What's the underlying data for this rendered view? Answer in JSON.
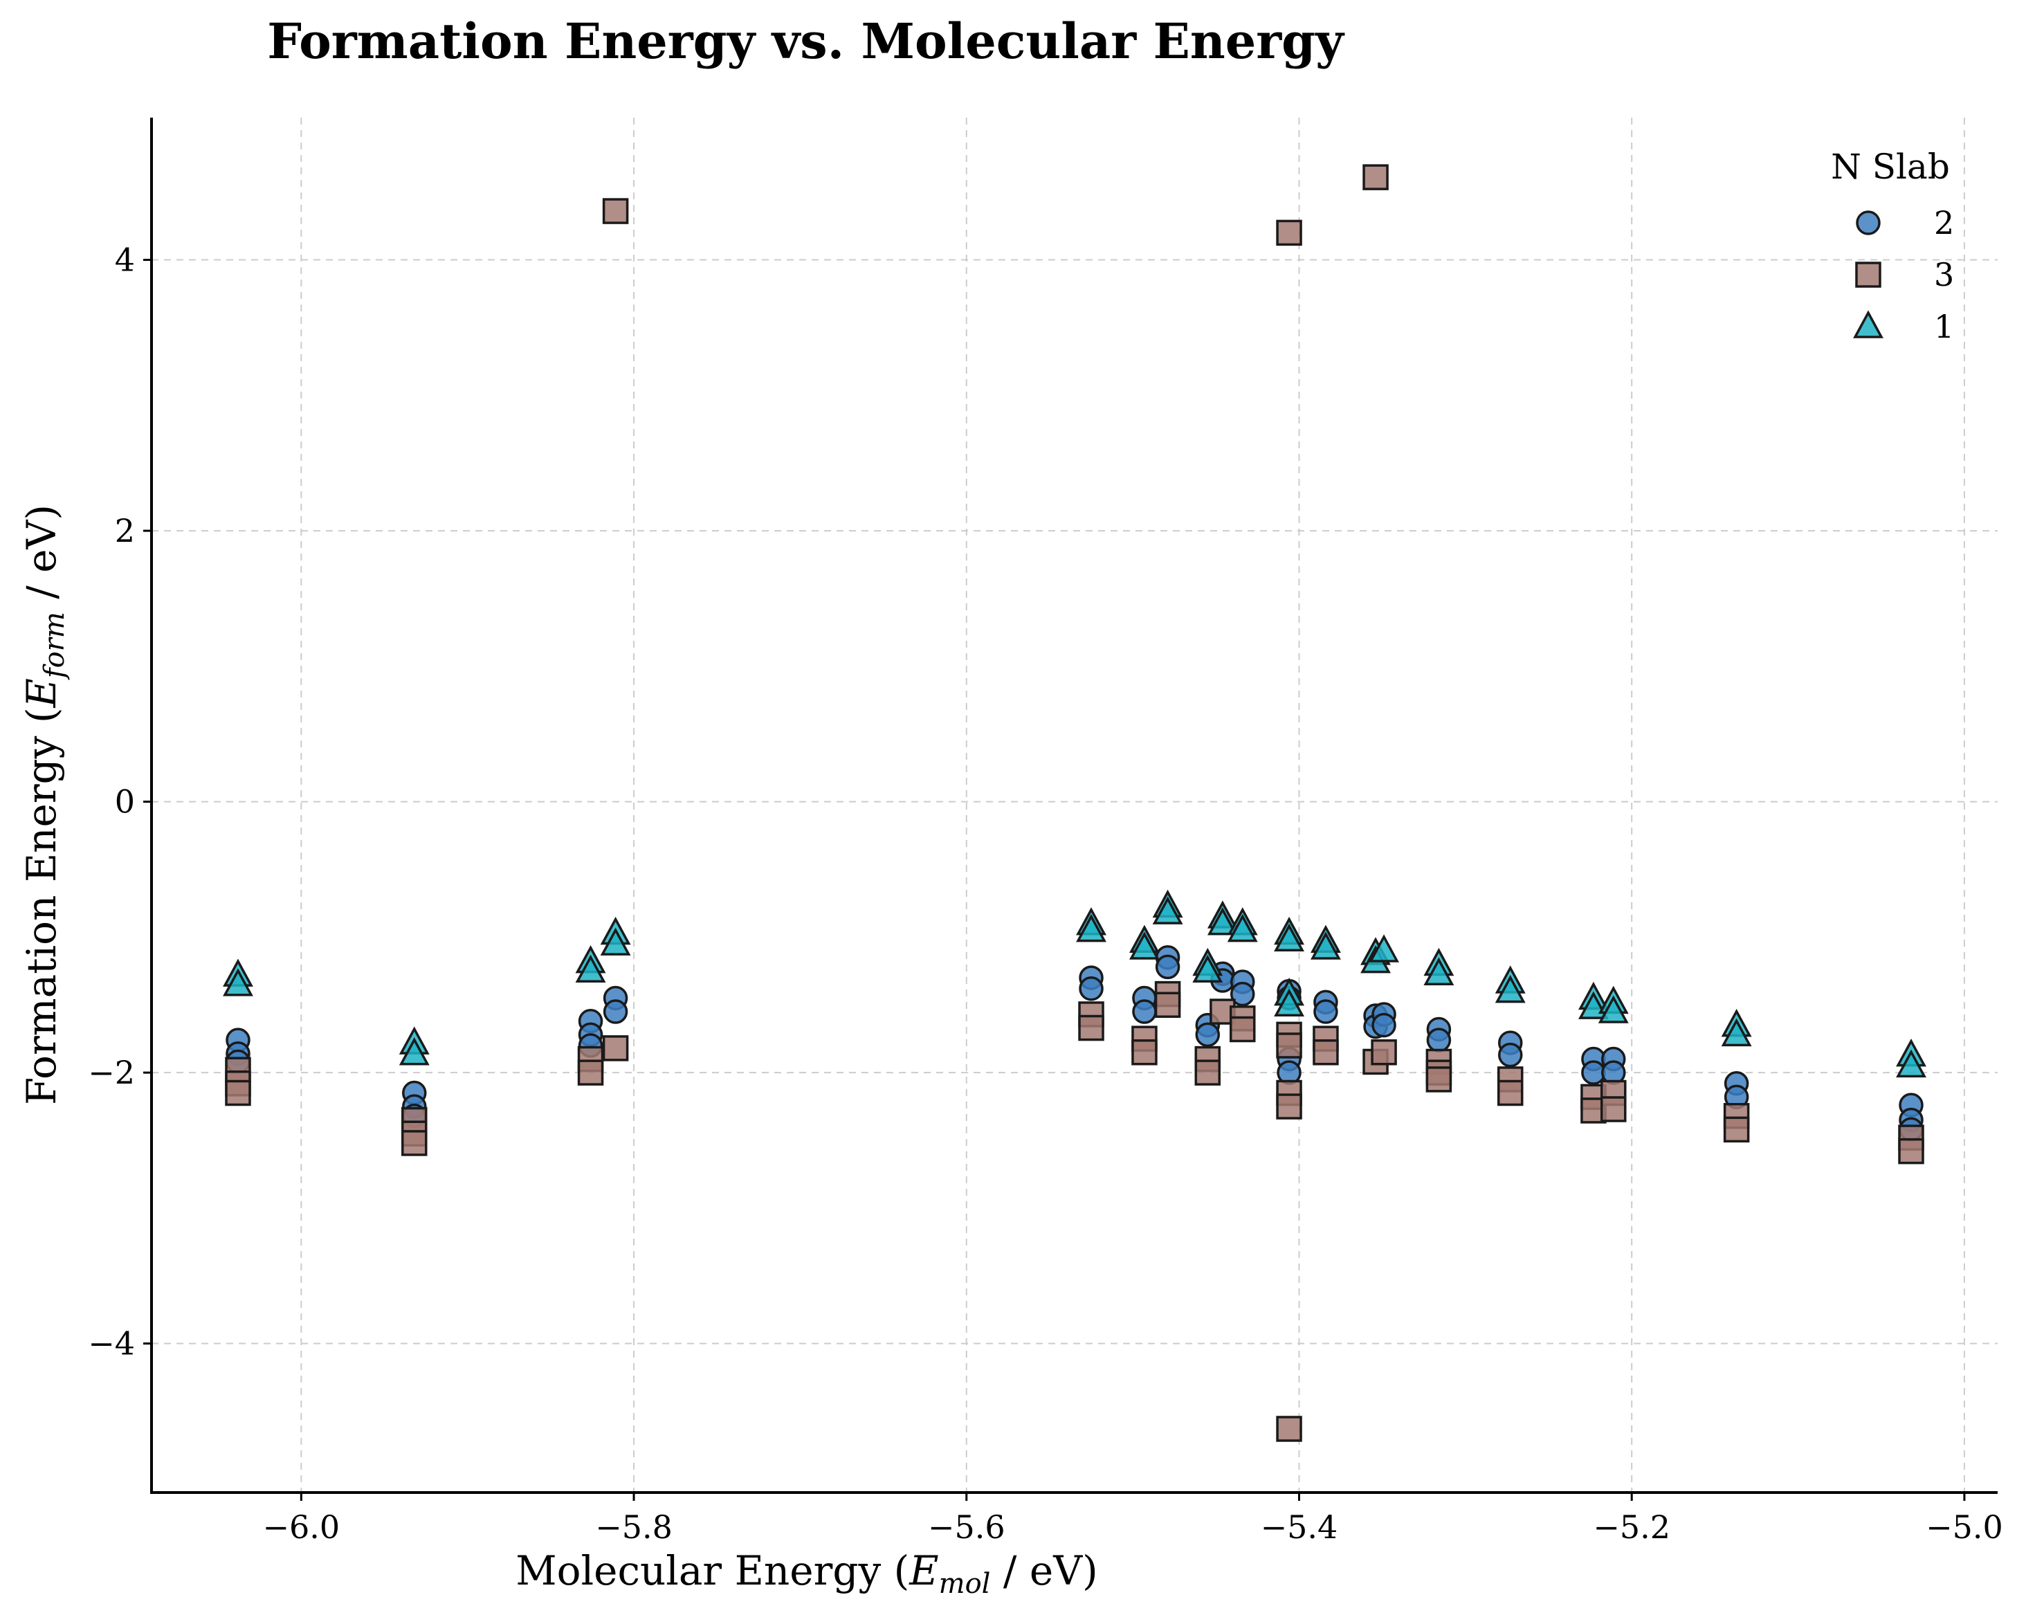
{
  "chart_data": {
    "type": "scatter",
    "title": "Formation Energy vs. Molecular Energy",
    "xlabel": "Molecular Energy (",
    "xlabel_symbol": "E",
    "xlabel_sub": "mol",
    "xlabel_unit": " / eV)",
    "ylabel": "Formation Energy (",
    "ylabel_symbol": "E",
    "ylabel_sub": "form",
    "ylabel_unit": " / eV)",
    "xlim": [
      -6.09,
      -4.98
    ],
    "ylim": [
      -5.1,
      5.05
    ],
    "x_ticks": [
      -6.0,
      -5.8,
      -5.6,
      -5.4,
      -5.2,
      -5.0
    ],
    "x_tick_labels": [
      "−6.0",
      "−5.8",
      "−5.6",
      "−5.4",
      "−5.2",
      "−5.0"
    ],
    "y_ticks": [
      -4,
      -2,
      0,
      2,
      4
    ],
    "y_tick_labels": [
      "−4",
      "−2",
      "0",
      "2",
      "4"
    ],
    "grid": true,
    "legend": {
      "title": "N Slab",
      "placement": "top-right"
    },
    "series": [
      {
        "name": "2",
        "marker": "circle",
        "color": "#3e7fc1",
        "points": [
          [
            -6.038,
            -1.76
          ],
          [
            -6.038,
            -1.86
          ],
          [
            -6.038,
            -1.92
          ],
          [
            -5.932,
            -2.15
          ],
          [
            -5.932,
            -2.25
          ],
          [
            -5.932,
            -2.32
          ],
          [
            -5.826,
            -1.62
          ],
          [
            -5.826,
            -1.72
          ],
          [
            -5.826,
            -1.8
          ],
          [
            -5.811,
            -1.45
          ],
          [
            -5.811,
            -1.55
          ],
          [
            -5.525,
            -1.3
          ],
          [
            -5.525,
            -1.38
          ],
          [
            -5.493,
            -1.45
          ],
          [
            -5.493,
            -1.55
          ],
          [
            -5.479,
            -1.15
          ],
          [
            -5.479,
            -1.22
          ],
          [
            -5.455,
            -1.65
          ],
          [
            -5.455,
            -1.72
          ],
          [
            -5.446,
            -1.27
          ],
          [
            -5.446,
            -1.32
          ],
          [
            -5.434,
            -1.33
          ],
          [
            -5.434,
            -1.42
          ],
          [
            -5.406,
            -1.4
          ],
          [
            -5.406,
            -1.45
          ],
          [
            -5.406,
            -1.9
          ],
          [
            -5.406,
            -2.0
          ],
          [
            -5.384,
            -1.48
          ],
          [
            -5.384,
            -1.55
          ],
          [
            -5.354,
            -1.58
          ],
          [
            -5.354,
            -1.66
          ],
          [
            -5.349,
            -1.57
          ],
          [
            -5.349,
            -1.65
          ],
          [
            -5.316,
            -1.68
          ],
          [
            -5.316,
            -1.76
          ],
          [
            -5.273,
            -1.78
          ],
          [
            -5.273,
            -1.87
          ],
          [
            -5.223,
            -1.9
          ],
          [
            -5.223,
            -2.0
          ],
          [
            -5.211,
            -1.9
          ],
          [
            -5.211,
            -2.0
          ],
          [
            -5.137,
            -2.08
          ],
          [
            -5.137,
            -2.18
          ],
          [
            -5.032,
            -2.24
          ],
          [
            -5.032,
            -2.35
          ],
          [
            -5.032,
            -2.42
          ]
        ]
      },
      {
        "name": "3",
        "marker": "square",
        "color": "#a37a72",
        "points": [
          [
            -6.038,
            -1.98
          ],
          [
            -6.038,
            -2.08
          ],
          [
            -6.038,
            -2.15
          ],
          [
            -5.932,
            -2.35
          ],
          [
            -5.932,
            -2.45
          ],
          [
            -5.932,
            -2.52
          ],
          [
            -5.826,
            -1.9
          ],
          [
            -5.826,
            -2.0
          ],
          [
            -5.811,
            -1.82
          ],
          [
            -5.811,
            4.36
          ],
          [
            -5.525,
            -1.57
          ],
          [
            -5.525,
            -1.67
          ],
          [
            -5.493,
            -1.75
          ],
          [
            -5.493,
            -1.85
          ],
          [
            -5.479,
            -1.42
          ],
          [
            -5.479,
            -1.5
          ],
          [
            -5.455,
            -1.9
          ],
          [
            -5.455,
            -2.0
          ],
          [
            -5.446,
            -1.55
          ],
          [
            -5.434,
            -1.6
          ],
          [
            -5.434,
            -1.68
          ],
          [
            -5.406,
            -1.72
          ],
          [
            -5.406,
            -1.8
          ],
          [
            -5.406,
            -2.15
          ],
          [
            -5.406,
            -2.25
          ],
          [
            -5.406,
            4.2
          ],
          [
            -5.406,
            -4.63
          ],
          [
            -5.384,
            -1.75
          ],
          [
            -5.384,
            -1.85
          ],
          [
            -5.354,
            -1.92
          ],
          [
            -5.349,
            -1.85
          ],
          [
            -5.354,
            4.61
          ],
          [
            -5.316,
            -1.92
          ],
          [
            -5.316,
            -2.0
          ],
          [
            -5.316,
            -2.05
          ],
          [
            -5.273,
            -2.05
          ],
          [
            -5.273,
            -2.15
          ],
          [
            -5.223,
            -2.18
          ],
          [
            -5.223,
            -2.28
          ],
          [
            -5.211,
            -2.15
          ],
          [
            -5.211,
            -2.27
          ],
          [
            -5.137,
            -2.32
          ],
          [
            -5.137,
            -2.42
          ],
          [
            -5.032,
            -2.48
          ],
          [
            -5.032,
            -2.58
          ]
        ]
      },
      {
        "name": "1",
        "marker": "triangle",
        "color": "#1fb3c5",
        "points": [
          [
            -6.038,
            -1.28
          ],
          [
            -6.038,
            -1.35
          ],
          [
            -5.932,
            -1.78
          ],
          [
            -5.932,
            -1.86
          ],
          [
            -5.826,
            -1.18
          ],
          [
            -5.826,
            -1.25
          ],
          [
            -5.811,
            -0.97
          ],
          [
            -5.811,
            -1.05
          ],
          [
            -5.525,
            -0.9
          ],
          [
            -5.525,
            -0.95
          ],
          [
            -5.493,
            -1.03
          ],
          [
            -5.493,
            -1.08
          ],
          [
            -5.479,
            -0.77
          ],
          [
            -5.479,
            -0.82
          ],
          [
            -5.455,
            -1.2
          ],
          [
            -5.455,
            -1.25
          ],
          [
            -5.446,
            -0.85
          ],
          [
            -5.446,
            -0.9
          ],
          [
            -5.434,
            -0.9
          ],
          [
            -5.434,
            -0.95
          ],
          [
            -5.406,
            -0.97
          ],
          [
            -5.406,
            -1.02
          ],
          [
            -5.406,
            -1.42
          ],
          [
            -5.406,
            -1.5
          ],
          [
            -5.384,
            -1.03
          ],
          [
            -5.384,
            -1.08
          ],
          [
            -5.354,
            -1.12
          ],
          [
            -5.354,
            -1.18
          ],
          [
            -5.349,
            -1.1
          ],
          [
            -5.316,
            -1.2
          ],
          [
            -5.316,
            -1.27
          ],
          [
            -5.273,
            -1.33
          ],
          [
            -5.273,
            -1.4
          ],
          [
            -5.223,
            -1.45
          ],
          [
            -5.223,
            -1.52
          ],
          [
            -5.211,
            -1.48
          ],
          [
            -5.211,
            -1.55
          ],
          [
            -5.137,
            -1.65
          ],
          [
            -5.137,
            -1.72
          ],
          [
            -5.032,
            -1.87
          ],
          [
            -5.032,
            -1.95
          ]
        ]
      }
    ]
  }
}
